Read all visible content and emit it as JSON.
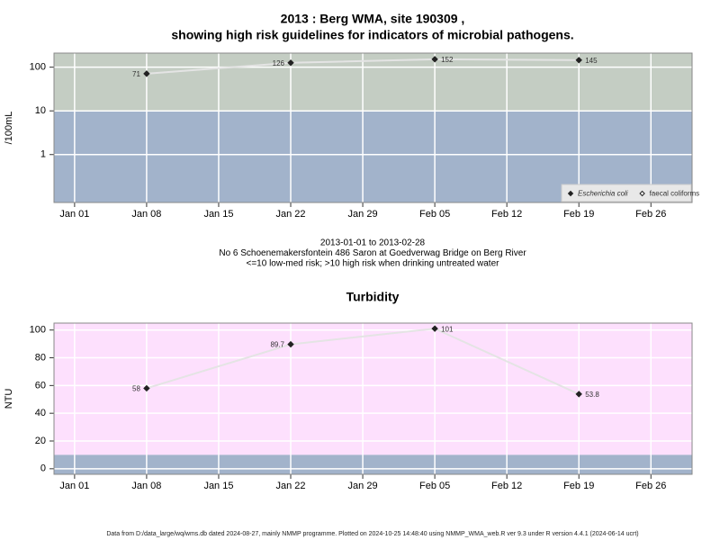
{
  "chart_data": [
    {
      "type": "line",
      "title": [
        "2013 : Berg WMA, site 190309 ,",
        "showing high risk guidelines for indicators of microbial pathogens."
      ],
      "ylabel": "/100mL",
      "log_scale": true,
      "ylim": [
        0.08,
        210
      ],
      "yticks": [
        1,
        10,
        100
      ],
      "x": [
        "Jan 08",
        "Jan 22",
        "Feb 05",
        "Feb 19"
      ],
      "xlim": [
        "Dec 30",
        "Mar 02"
      ],
      "xticks": [
        "Jan 01",
        "Jan 08",
        "Jan 15",
        "Jan 22",
        "Jan 29",
        "Feb 05",
        "Feb 12",
        "Feb 19",
        "Feb 26"
      ],
      "grid": true,
      "risk_threshold": 10,
      "band_colors": {
        "low": "#a2b3cb",
        "high": "#c4cdc3"
      },
      "line_color": "#e4e4e4",
      "series": [
        {
          "name": "Escherichia coli",
          "color": "#222222",
          "marker": "filled",
          "values": [
            71,
            126,
            152,
            145
          ]
        },
        {
          "name": "faecal coliforms",
          "color": "#222222",
          "marker": "open",
          "values": [
            null,
            null,
            null,
            null
          ]
        }
      ],
      "legend": "bottom right",
      "notes": [
        "2013-01-01 to 2013-02-28",
        "No 6 Schoenemakersfontein 486 Saron at Goedverwag Bridge on Berg River",
        "<=10 low-med risk; >10 high risk when drinking untreated water"
      ]
    },
    {
      "type": "line",
      "title": [
        "Turbidity"
      ],
      "ylabel": "NTU",
      "log_scale": false,
      "ylim": [
        -4,
        105
      ],
      "yticks": [
        0,
        20,
        40,
        60,
        80,
        100
      ],
      "x": [
        "Jan 08",
        "Jan 22",
        "Feb 05",
        "Feb 19"
      ],
      "xlim": [
        "Dec 30",
        "Mar 02"
      ],
      "xticks": [
        "Jan 01",
        "Jan 08",
        "Jan 15",
        "Jan 22",
        "Jan 29",
        "Feb 05",
        "Feb 12",
        "Feb 19",
        "Feb 26"
      ],
      "grid": true,
      "risk_threshold": 10,
      "band_colors": {
        "low": "#a2b3cb",
        "high": "#fde0fd"
      },
      "line_color": "#e4e4e4",
      "series": [
        {
          "name": "Turbidity",
          "color": "#222222",
          "marker": "filled",
          "values": [
            58,
            89.7,
            101,
            53.8
          ]
        }
      ]
    }
  ],
  "footer": "Data from D:/data_large/wq/wms.db dated 2024-08-27, mainly NMMP programme. Plotted on 2024-10-25 14:48:40 using NMMP_WMA_web.R ver 9.3 under R version 4.4.1 (2024-06-14 ucrt)"
}
